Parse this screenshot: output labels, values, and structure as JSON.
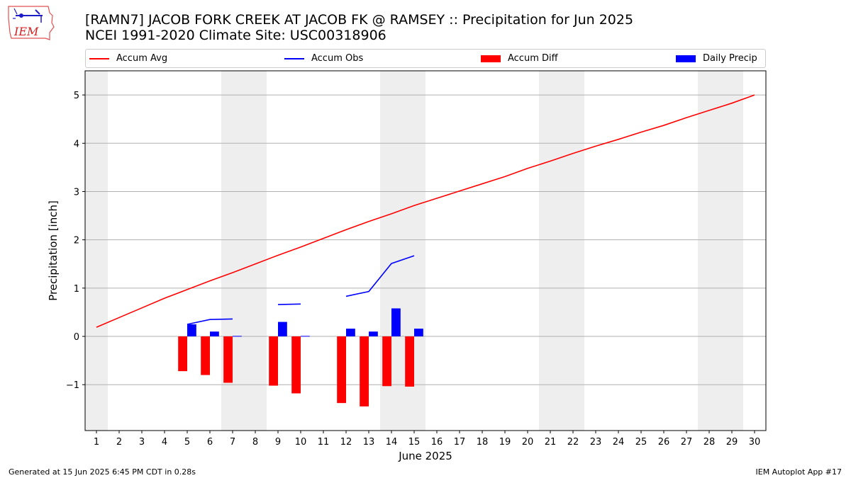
{
  "header": {
    "logo_text": "IEM",
    "title_line1": "[RAMN7] JACOB FORK CREEK  AT JACOB FK @ RAMSEY :: Precipitation for Jun 2025",
    "title_line2": "NCEI 1991-2020 Climate Site: USC00318906"
  },
  "legend": {
    "items": [
      {
        "label": "Accum Avg",
        "color": "#ff0000",
        "kind": "line"
      },
      {
        "label": "Accum Obs",
        "color": "#0000ff",
        "kind": "line"
      },
      {
        "label": "Accum Diff",
        "color": "#ff0000",
        "kind": "bar"
      },
      {
        "label": "Daily Precip",
        "color": "#0000ff",
        "kind": "bar"
      }
    ]
  },
  "chart_data": {
    "type": "bar",
    "xlabel": "June 2025",
    "ylabel": "Precipitation [inch]",
    "x": [
      1,
      2,
      3,
      4,
      5,
      6,
      7,
      8,
      9,
      10,
      11,
      12,
      13,
      14,
      15,
      16,
      17,
      18,
      19,
      20,
      21,
      22,
      23,
      24,
      25,
      26,
      27,
      28,
      29,
      30
    ],
    "xlim": [
      0.5,
      30.5
    ],
    "ylim": [
      -1.95,
      5.5
    ],
    "yticks": [
      -1,
      0,
      1,
      2,
      3,
      4,
      5
    ],
    "ytick_labels": [
      "−1",
      "0",
      "1",
      "2",
      "3",
      "4",
      "5"
    ],
    "grid": "horizontal",
    "weekend_days": [
      1,
      7,
      8,
      14,
      15,
      21,
      22,
      28,
      29
    ],
    "weekend_color": "#eeeeee",
    "series": [
      {
        "name": "Accum Avg",
        "type": "line",
        "color": "#ff0000",
        "values": [
          0.19,
          0.39,
          0.59,
          0.79,
          0.97,
          1.15,
          1.32,
          1.5,
          1.68,
          1.85,
          2.03,
          2.21,
          2.38,
          2.54,
          2.71,
          2.86,
          3.01,
          3.16,
          3.31,
          3.48,
          3.63,
          3.79,
          3.94,
          4.08,
          4.23,
          4.37,
          4.53,
          4.68,
          4.83,
          5.0
        ]
      },
      {
        "name": "Accum Obs",
        "type": "line",
        "color": "#0000ff",
        "values": [
          null,
          null,
          null,
          null,
          0.25,
          0.35,
          0.36,
          null,
          0.66,
          0.67,
          null,
          0.83,
          0.93,
          1.51,
          1.67,
          null,
          null,
          null,
          null,
          null,
          null,
          null,
          null,
          null,
          null,
          null,
          null,
          null,
          null,
          null
        ]
      },
      {
        "name": "Accum Diff",
        "type": "bar",
        "color": "#ff0000",
        "values": [
          null,
          null,
          null,
          null,
          -0.72,
          -0.8,
          -0.96,
          null,
          -1.02,
          -1.18,
          null,
          -1.38,
          -1.45,
          -1.03,
          -1.04,
          null,
          null,
          null,
          null,
          null,
          null,
          null,
          null,
          null,
          null,
          null,
          null,
          null,
          null,
          null
        ]
      },
      {
        "name": "Daily Precip",
        "type": "bar",
        "color": "#0000ff",
        "values": [
          null,
          null,
          null,
          null,
          0.25,
          0.1,
          0.01,
          null,
          0.3,
          0.01,
          null,
          0.16,
          0.1,
          0.58,
          0.16,
          null,
          null,
          null,
          null,
          null,
          null,
          null,
          null,
          null,
          null,
          null,
          null,
          null,
          null,
          null
        ]
      }
    ]
  },
  "footer": {
    "left": "Generated at 15 Jun 2025 6:45 PM CDT in 0.28s",
    "right": "IEM Autoplot App #17"
  }
}
